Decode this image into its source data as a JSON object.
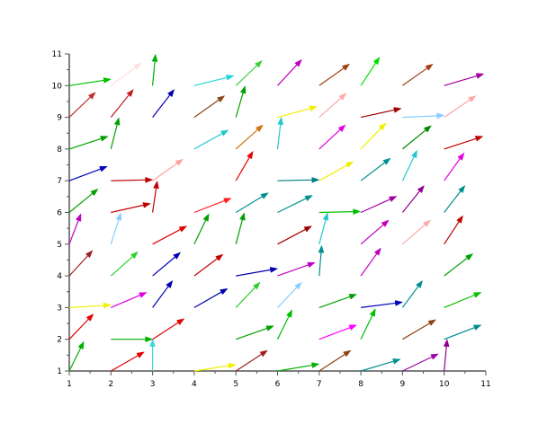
{
  "chart_data": {
    "type": "quiver",
    "title": "",
    "xlabel": "",
    "ylabel": "",
    "xlim": [
      1,
      11
    ],
    "ylim": [
      1,
      11
    ],
    "grid": false,
    "x_ticks": [
      "1",
      "2",
      "3",
      "4",
      "5",
      "6",
      "7",
      "8",
      "9",
      "10",
      "11"
    ],
    "y_ticks": [
      "1",
      "2",
      "3",
      "4",
      "5",
      "6",
      "7",
      "8",
      "9",
      "10",
      "11"
    ],
    "arrows": [
      {
        "x": 1,
        "y": 1,
        "dx": 0.35,
        "dy": 0.93,
        "color": "#00b000"
      },
      {
        "x": 2,
        "y": 1,
        "dx": 0.8,
        "dy": 0.6,
        "color": "#e00000"
      },
      {
        "x": 3,
        "y": 1,
        "dx": 0.0,
        "dy": 1.0,
        "color": "#40d8d8"
      },
      {
        "x": 4,
        "y": 1,
        "dx": 1.0,
        "dy": 0.2,
        "color": "#f0f000"
      },
      {
        "x": 5,
        "y": 1,
        "dx": 0.76,
        "dy": 0.65,
        "color": "#a02020"
      },
      {
        "x": 6,
        "y": 1,
        "dx": 1.0,
        "dy": 0.22,
        "color": "#00b000"
      },
      {
        "x": 7,
        "y": 1,
        "dx": 0.76,
        "dy": 0.65,
        "color": "#8b4513"
      },
      {
        "x": 8,
        "y": 1,
        "dx": 0.95,
        "dy": 0.37,
        "color": "#009090"
      },
      {
        "x": 9,
        "y": 1,
        "dx": 0.86,
        "dy": 0.54,
        "color": "#a000a0"
      },
      {
        "x": 10,
        "y": 1,
        "dx": 0.07,
        "dy": 1.0,
        "color": "#900090"
      },
      {
        "x": 1,
        "y": 2,
        "dx": 0.58,
        "dy": 0.8,
        "color": "#e00000"
      },
      {
        "x": 2,
        "y": 2,
        "dx": 1.0,
        "dy": 0.0,
        "color": "#00b000"
      },
      {
        "x": 3,
        "y": 2,
        "dx": 0.76,
        "dy": 0.65,
        "color": "#e00000"
      },
      {
        "x": 5,
        "y": 2,
        "dx": 0.91,
        "dy": 0.42,
        "color": "#00a000"
      },
      {
        "x": 6,
        "y": 2,
        "dx": 0.35,
        "dy": 0.93,
        "color": "#00c000"
      },
      {
        "x": 7,
        "y": 2,
        "dx": 0.9,
        "dy": 0.45,
        "color": "#ff00ff"
      },
      {
        "x": 8,
        "y": 2,
        "dx": 0.35,
        "dy": 0.96,
        "color": "#00c000"
      },
      {
        "x": 9,
        "y": 2,
        "dx": 0.8,
        "dy": 0.62,
        "color": "#8b4513"
      },
      {
        "x": 10,
        "y": 2,
        "dx": 0.89,
        "dy": 0.45,
        "color": "#009090"
      },
      {
        "x": 1,
        "y": 3,
        "dx": 1.0,
        "dy": 0.08,
        "color": "#f0f000"
      },
      {
        "x": 2,
        "y": 3,
        "dx": 0.86,
        "dy": 0.48,
        "color": "#e000e0"
      },
      {
        "x": 3,
        "y": 3,
        "dx": 0.48,
        "dy": 0.85,
        "color": "#0000b0"
      },
      {
        "x": 4,
        "y": 3,
        "dx": 0.8,
        "dy": 0.6,
        "color": "#0000b0"
      },
      {
        "x": 5,
        "y": 3,
        "dx": 0.58,
        "dy": 0.8,
        "color": "#30d030"
      },
      {
        "x": 6,
        "y": 3,
        "dx": 0.58,
        "dy": 0.8,
        "color": "#87ceff"
      },
      {
        "x": 7,
        "y": 3,
        "dx": 0.9,
        "dy": 0.42,
        "color": "#00a000"
      },
      {
        "x": 8,
        "y": 3,
        "dx": 1.0,
        "dy": 0.17,
        "color": "#0000c0"
      },
      {
        "x": 9,
        "y": 3,
        "dx": 0.48,
        "dy": 0.85,
        "color": "#009090"
      },
      {
        "x": 10,
        "y": 3,
        "dx": 0.89,
        "dy": 0.48,
        "color": "#00c000"
      },
      {
        "x": 1,
        "y": 4,
        "dx": 0.56,
        "dy": 0.8,
        "color": "#a02020"
      },
      {
        "x": 2,
        "y": 4,
        "dx": 0.65,
        "dy": 0.76,
        "color": "#30d030"
      },
      {
        "x": 3,
        "y": 4,
        "dx": 0.67,
        "dy": 0.74,
        "color": "#0000b0"
      },
      {
        "x": 4,
        "y": 4,
        "dx": 0.69,
        "dy": 0.68,
        "color": "#c00000"
      },
      {
        "x": 5,
        "y": 4,
        "dx": 1.0,
        "dy": 0.23,
        "color": "#0000b0"
      },
      {
        "x": 6,
        "y": 4,
        "dx": 0.9,
        "dy": 0.42,
        "color": "#c000c0"
      },
      {
        "x": 7,
        "y": 4,
        "dx": 0.06,
        "dy": 0.96,
        "color": "#009090"
      },
      {
        "x": 8,
        "y": 4,
        "dx": 0.48,
        "dy": 0.88,
        "color": "#c000c0"
      },
      {
        "x": 10,
        "y": 4,
        "dx": 0.69,
        "dy": 0.7,
        "color": "#00a000"
      },
      {
        "x": 1,
        "y": 5,
        "dx": 0.28,
        "dy": 0.96,
        "color": "#c000c0"
      },
      {
        "x": 2,
        "y": 5,
        "dx": 0.24,
        "dy": 0.99,
        "color": "#87ceff"
      },
      {
        "x": 3,
        "y": 5,
        "dx": 0.82,
        "dy": 0.57,
        "color": "#e00000"
      },
      {
        "x": 4,
        "y": 5,
        "dx": 0.35,
        "dy": 0.96,
        "color": "#00a000"
      },
      {
        "x": 5,
        "y": 5,
        "dx": 0.2,
        "dy": 0.99,
        "color": "#00a000"
      },
      {
        "x": 6,
        "y": 5,
        "dx": 0.82,
        "dy": 0.57,
        "color": "#a00000"
      },
      {
        "x": 7,
        "y": 5,
        "dx": 0.2,
        "dy": 0.99,
        "color": "#20c8d0"
      },
      {
        "x": 8,
        "y": 5,
        "dx": 0.67,
        "dy": 0.76,
        "color": "#c000c0"
      },
      {
        "x": 9,
        "y": 5,
        "dx": 0.67,
        "dy": 0.76,
        "color": "#ffa8a8"
      },
      {
        "x": 10,
        "y": 5,
        "dx": 0.45,
        "dy": 0.9,
        "color": "#c00000"
      },
      {
        "x": 1,
        "y": 6,
        "dx": 0.69,
        "dy": 0.74,
        "color": "#00a000"
      },
      {
        "x": 2,
        "y": 6,
        "dx": 0.95,
        "dy": 0.28,
        "color": "#c00000"
      },
      {
        "x": 3,
        "y": 6,
        "dx": 0.11,
        "dy": 0.99,
        "color": "#c00000"
      },
      {
        "x": 4,
        "y": 6,
        "dx": 0.89,
        "dy": 0.45,
        "color": "#ff2020"
      },
      {
        "x": 5,
        "y": 6,
        "dx": 0.78,
        "dy": 0.62,
        "color": "#009090"
      },
      {
        "x": 6,
        "y": 6,
        "dx": 0.84,
        "dy": 0.54,
        "color": "#009090"
      },
      {
        "x": 7,
        "y": 6,
        "dx": 0.99,
        "dy": 0.03,
        "color": "#00c000"
      },
      {
        "x": 8,
        "y": 6,
        "dx": 0.86,
        "dy": 0.51,
        "color": "#a000a0"
      },
      {
        "x": 9,
        "y": 6,
        "dx": 0.52,
        "dy": 0.85,
        "color": "#900090"
      },
      {
        "x": 10,
        "y": 6,
        "dx": 0.5,
        "dy": 0.85,
        "color": "#009090"
      },
      {
        "x": 1,
        "y": 7,
        "dx": 0.91,
        "dy": 0.45,
        "color": "#0000c0"
      },
      {
        "x": 2,
        "y": 7,
        "dx": 1.0,
        "dy": 0.03,
        "color": "#c00000"
      },
      {
        "x": 3,
        "y": 7,
        "dx": 0.73,
        "dy": 0.68,
        "color": "#ffa0a0"
      },
      {
        "x": 5,
        "y": 7,
        "dx": 0.41,
        "dy": 0.93,
        "color": "#e00000"
      },
      {
        "x": 6,
        "y": 7,
        "dx": 1.0,
        "dy": 0.03,
        "color": "#008080"
      },
      {
        "x": 7,
        "y": 7,
        "dx": 0.82,
        "dy": 0.6,
        "color": "#f0f000"
      },
      {
        "x": 8,
        "y": 7,
        "dx": 0.71,
        "dy": 0.71,
        "color": "#009090"
      },
      {
        "x": 9,
        "y": 7,
        "dx": 0.35,
        "dy": 0.96,
        "color": "#20c8d0"
      },
      {
        "x": 10,
        "y": 7,
        "dx": 0.48,
        "dy": 0.88,
        "color": "#e000e0"
      },
      {
        "x": 1,
        "y": 8,
        "dx": 0.93,
        "dy": 0.4,
        "color": "#00a000"
      },
      {
        "x": 2,
        "y": 8,
        "dx": 0.19,
        "dy": 0.99,
        "color": "#00a000"
      },
      {
        "x": 4,
        "y": 8,
        "dx": 0.82,
        "dy": 0.6,
        "color": "#20c8d0"
      },
      {
        "x": 5,
        "y": 8,
        "dx": 0.65,
        "dy": 0.76,
        "color": "#d07010"
      },
      {
        "x": 6,
        "y": 8,
        "dx": 0.09,
        "dy": 1.0,
        "color": "#20c8d0"
      },
      {
        "x": 7,
        "y": 8,
        "dx": 0.63,
        "dy": 0.76,
        "color": "#e000e0"
      },
      {
        "x": 8,
        "y": 8,
        "dx": 0.6,
        "dy": 0.82,
        "color": "#f0f000"
      },
      {
        "x": 9,
        "y": 8,
        "dx": 0.69,
        "dy": 0.74,
        "color": "#008800"
      },
      {
        "x": 10,
        "y": 8,
        "dx": 0.93,
        "dy": 0.4,
        "color": "#c00000"
      },
      {
        "x": 1,
        "y": 9,
        "dx": 0.63,
        "dy": 0.79,
        "color": "#c03030"
      },
      {
        "x": 2,
        "y": 9,
        "dx": 0.54,
        "dy": 0.88,
        "color": "#c02020"
      },
      {
        "x": 3,
        "y": 9,
        "dx": 0.52,
        "dy": 0.88,
        "color": "#0000b0"
      },
      {
        "x": 4,
        "y": 9,
        "dx": 0.73,
        "dy": 0.68,
        "color": "#8b4513"
      },
      {
        "x": 5,
        "y": 9,
        "dx": 0.22,
        "dy": 0.99,
        "color": "#00a000"
      },
      {
        "x": 6,
        "y": 9,
        "dx": 0.95,
        "dy": 0.34,
        "color": "#f0f000"
      },
      {
        "x": 7,
        "y": 9,
        "dx": 0.65,
        "dy": 0.76,
        "color": "#ffa8a8"
      },
      {
        "x": 8,
        "y": 9,
        "dx": 0.97,
        "dy": 0.28,
        "color": "#a00000"
      },
      {
        "x": 9,
        "y": 9,
        "dx": 1.0,
        "dy": 0.06,
        "color": "#87ceff"
      },
      {
        "x": 10,
        "y": 9,
        "dx": 0.76,
        "dy": 0.68,
        "color": "#ffa8a8"
      },
      {
        "x": 1,
        "y": 10,
        "dx": 1.0,
        "dy": 0.2,
        "color": "#00c000"
      },
      {
        "x": 2,
        "y": 10,
        "dx": 0.73,
        "dy": 0.71,
        "color": "#ffe0e0"
      },
      {
        "x": 3,
        "y": 10,
        "dx": 0.07,
        "dy": 0.99,
        "color": "#00b000"
      },
      {
        "x": 4,
        "y": 10,
        "dx": 0.95,
        "dy": 0.31,
        "color": "#20d8d8"
      },
      {
        "x": 5,
        "y": 10,
        "dx": 0.63,
        "dy": 0.79,
        "color": "#40d040"
      },
      {
        "x": 6,
        "y": 10,
        "dx": 0.58,
        "dy": 0.82,
        "color": "#c000c0"
      },
      {
        "x": 7,
        "y": 10,
        "dx": 0.73,
        "dy": 0.68,
        "color": "#a04010"
      },
      {
        "x": 8,
        "y": 10,
        "dx": 0.45,
        "dy": 0.9,
        "color": "#00e000"
      },
      {
        "x": 9,
        "y": 10,
        "dx": 0.73,
        "dy": 0.68,
        "color": "#a04010"
      },
      {
        "x": 10,
        "y": 10,
        "dx": 0.95,
        "dy": 0.37,
        "color": "#a000a0"
      }
    ]
  },
  "colors": {
    "axis": "#555555"
  }
}
